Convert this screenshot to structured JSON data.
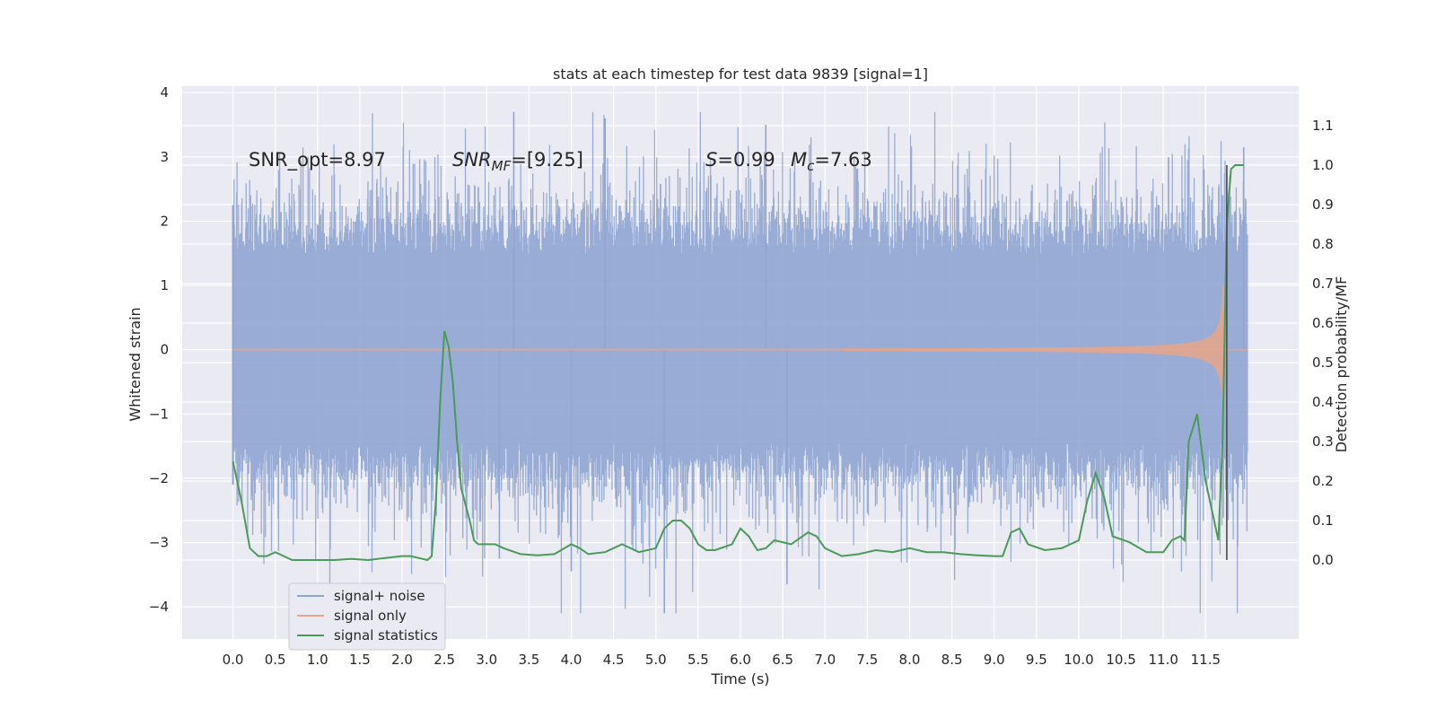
{
  "chart_data": {
    "type": "line",
    "title": "stats at each timestep for test data 9839 [signal=1]",
    "xlabel": "Time (s)",
    "ylabel_left": "Whitened strain",
    "ylabel_right": "Detection probability/MF",
    "xlim": [
      -0.6,
      12.6
    ],
    "ylim_left": [
      -4.5,
      4.1
    ],
    "ylim_right": [
      -0.2,
      1.2
    ],
    "x_ticks": [
      "0.0",
      "0.5",
      "1.0",
      "1.5",
      "2.0",
      "2.5",
      "3.0",
      "3.5",
      "4.0",
      "4.5",
      "5.0",
      "5.5",
      "6.0",
      "6.5",
      "7.0",
      "7.5",
      "8.0",
      "8.5",
      "9.0",
      "9.5",
      "10.0",
      "10.5",
      "11.0",
      "11.5"
    ],
    "y_ticks_left": [
      "4",
      "3",
      "2",
      "1",
      "0",
      "−1",
      "−2",
      "−3",
      "−4"
    ],
    "y_ticks_right": [
      "1.1",
      "1.0",
      "0.9",
      "0.8",
      "0.7",
      "0.6",
      "0.5",
      "0.4",
      "0.3",
      "0.2",
      "0.1",
      "0.0"
    ],
    "grid": true,
    "legend_position": "lower-left",
    "annotations": {
      "snr_opt": "SNR_opt=8.97",
      "snr_mf_name": "SNR",
      "snr_mf_sub": "MF",
      "snr_mf_tail": "=[9.25]",
      "s_name": "S",
      "s_value": "=0.99",
      "mc_name": "M",
      "mc_sub": "c",
      "mc_value": "=7.63"
    },
    "vline_x": 11.75,
    "series": [
      {
        "name": "signal+ noise",
        "color": "#8fa5d2",
        "axis": "left",
        "t_range": [
          0.0,
          12.0
        ],
        "typical_amplitude": 2.0,
        "max": 3.7,
        "min": -4.1
      },
      {
        "name": "signal only",
        "color": "#e8a48a",
        "axis": "left",
        "t_range": [
          0.0,
          12.0
        ],
        "envelope_at_7_2": 0.02,
        "envelope_at_11_7": 1.0,
        "merger_time": 11.72
      },
      {
        "name": "signal statistics",
        "color": "#4a9a5a",
        "axis": "right",
        "points": [
          [
            0.0,
            0.25
          ],
          [
            0.1,
            0.15
          ],
          [
            0.2,
            0.03
          ],
          [
            0.3,
            0.01
          ],
          [
            0.4,
            0.01
          ],
          [
            0.5,
            0.02
          ],
          [
            0.6,
            0.01
          ],
          [
            0.7,
            0.0
          ],
          [
            0.8,
            0.0
          ],
          [
            1.0,
            0.0
          ],
          [
            1.2,
            0.0
          ],
          [
            1.4,
            0.003
          ],
          [
            1.6,
            0.0
          ],
          [
            1.8,
            0.005
          ],
          [
            2.0,
            0.01
          ],
          [
            2.1,
            0.01
          ],
          [
            2.2,
            0.005
          ],
          [
            2.3,
            0.0
          ],
          [
            2.35,
            0.01
          ],
          [
            2.4,
            0.15
          ],
          [
            2.45,
            0.4
          ],
          [
            2.5,
            0.58
          ],
          [
            2.55,
            0.54
          ],
          [
            2.6,
            0.45
          ],
          [
            2.65,
            0.3
          ],
          [
            2.7,
            0.18
          ],
          [
            2.8,
            0.1
          ],
          [
            2.85,
            0.05
          ],
          [
            2.9,
            0.04
          ],
          [
            3.0,
            0.04
          ],
          [
            3.1,
            0.04
          ],
          [
            3.2,
            0.03
          ],
          [
            3.4,
            0.015
          ],
          [
            3.6,
            0.012
          ],
          [
            3.8,
            0.015
          ],
          [
            4.0,
            0.04
          ],
          [
            4.1,
            0.03
          ],
          [
            4.2,
            0.015
          ],
          [
            4.4,
            0.02
          ],
          [
            4.6,
            0.04
          ],
          [
            4.8,
            0.02
          ],
          [
            5.0,
            0.03
          ],
          [
            5.1,
            0.08
          ],
          [
            5.2,
            0.1
          ],
          [
            5.3,
            0.1
          ],
          [
            5.4,
            0.08
          ],
          [
            5.5,
            0.04
          ],
          [
            5.6,
            0.025
          ],
          [
            5.7,
            0.025
          ],
          [
            5.9,
            0.04
          ],
          [
            6.0,
            0.08
          ],
          [
            6.1,
            0.06
          ],
          [
            6.2,
            0.025
          ],
          [
            6.3,
            0.03
          ],
          [
            6.4,
            0.05
          ],
          [
            6.6,
            0.04
          ],
          [
            6.8,
            0.07
          ],
          [
            6.9,
            0.06
          ],
          [
            7.0,
            0.03
          ],
          [
            7.2,
            0.01
          ],
          [
            7.4,
            0.015
          ],
          [
            7.6,
            0.025
          ],
          [
            7.8,
            0.02
          ],
          [
            8.0,
            0.03
          ],
          [
            8.2,
            0.02
          ],
          [
            8.4,
            0.02
          ],
          [
            8.6,
            0.015
          ],
          [
            8.8,
            0.012
          ],
          [
            9.0,
            0.01
          ],
          [
            9.1,
            0.01
          ],
          [
            9.2,
            0.07
          ],
          [
            9.3,
            0.08
          ],
          [
            9.4,
            0.04
          ],
          [
            9.6,
            0.025
          ],
          [
            9.8,
            0.03
          ],
          [
            10.0,
            0.05
          ],
          [
            10.1,
            0.15
          ],
          [
            10.2,
            0.22
          ],
          [
            10.3,
            0.16
          ],
          [
            10.4,
            0.06
          ],
          [
            10.6,
            0.045
          ],
          [
            10.8,
            0.02
          ],
          [
            11.0,
            0.02
          ],
          [
            11.1,
            0.05
          ],
          [
            11.2,
            0.06
          ],
          [
            11.25,
            0.05
          ],
          [
            11.3,
            0.3
          ],
          [
            11.4,
            0.37
          ],
          [
            11.5,
            0.2
          ],
          [
            11.6,
            0.1
          ],
          [
            11.65,
            0.05
          ],
          [
            11.7,
            0.3
          ],
          [
            11.75,
            0.85
          ],
          [
            11.8,
            0.99
          ],
          [
            11.85,
            1.0
          ],
          [
            11.95,
            1.0
          ]
        ]
      }
    ]
  },
  "legend": {
    "items": [
      {
        "label": "signal+ noise",
        "color": "#8fa5d2"
      },
      {
        "label": "signal only",
        "color": "#e8a48a"
      },
      {
        "label": "signal statistics",
        "color": "#4a9a5a"
      }
    ]
  }
}
